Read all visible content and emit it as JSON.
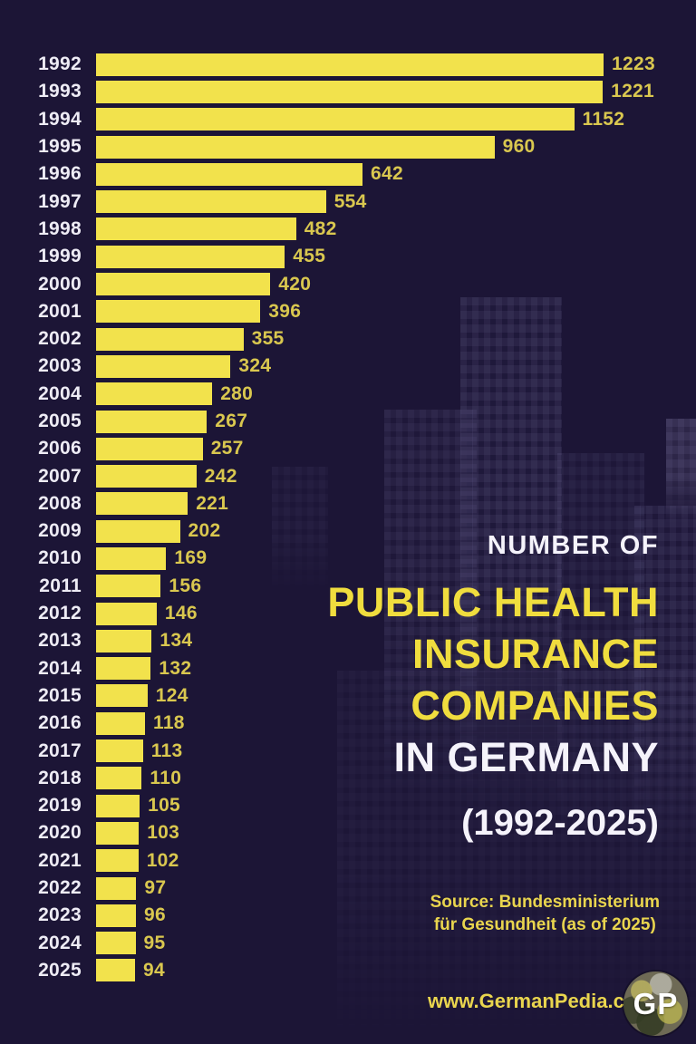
{
  "background": {
    "color": "#1c1536"
  },
  "chart_data": {
    "type": "bar",
    "orientation": "horizontal",
    "title": "Number of public health insurance companies in Germany (1992-2025)",
    "categories": [
      "1992",
      "1993",
      "1994",
      "1995",
      "1996",
      "1997",
      "1998",
      "1999",
      "2000",
      "2001",
      "2002",
      "2003",
      "2004",
      "2005",
      "2006",
      "2007",
      "2008",
      "2009",
      "2010",
      "2011",
      "2012",
      "2013",
      "2014",
      "2015",
      "2016",
      "2017",
      "2018",
      "2019",
      "2020",
      "2021",
      "2022",
      "2023",
      "2024",
      "2025"
    ],
    "values": [
      1223,
      1221,
      1152,
      960,
      642,
      554,
      482,
      455,
      420,
      396,
      355,
      324,
      280,
      267,
      257,
      242,
      221,
      202,
      169,
      156,
      146,
      134,
      132,
      124,
      118,
      113,
      110,
      105,
      103,
      102,
      97,
      96,
      95,
      94
    ],
    "xlim": [
      0,
      1280
    ],
    "grid": false,
    "legend": false,
    "value_labels_shown": true,
    "bar_color": "#f2e24c",
    "value_label_color": "#d9c74f",
    "category_label_color": "#eeecf5"
  },
  "title": {
    "kicker": "NUMBER OF",
    "line1": "PUBLIC HEALTH",
    "line2": "INSURANCE",
    "line3": "COMPANIES",
    "line4": "IN GERMANY",
    "subtitle": "(1992-2025)",
    "kicker_color": "#f5f3fb",
    "highlight_color": "#f0dd3e",
    "white_color": "#f5f3fb"
  },
  "source": {
    "line1": "Source: Bundesministerium",
    "line2": "für Gesundheit (as of 2025)",
    "color": "#e9d54e"
  },
  "footer": {
    "website": "www.GermanPedia.com",
    "website_color": "#e9d54e",
    "logo_text": "GP"
  }
}
